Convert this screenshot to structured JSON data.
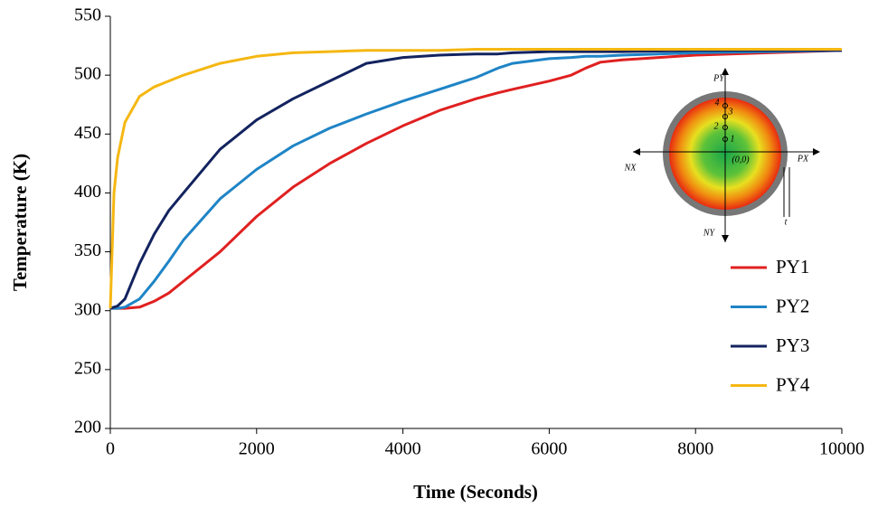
{
  "chart_data": {
    "type": "line",
    "x_label": "Time  (Seconds)",
    "y_label": "Temperature  (K)",
    "x": [
      0,
      50,
      100,
      200,
      400,
      600,
      800,
      1000,
      1500,
      2000,
      2500,
      3000,
      3500,
      4000,
      4500,
      5000,
      5300,
      5500,
      6000,
      6300,
      6500,
      6700,
      7000,
      8000,
      9000,
      10000
    ],
    "series": [
      {
        "name": "PY1",
        "color": "#e02020",
        "values": [
          302,
          302,
          302,
          302,
          303,
          308,
          315,
          325,
          350,
          380,
          405,
          425,
          442,
          457,
          470,
          480,
          485,
          488,
          495,
          500,
          506,
          511,
          513,
          517,
          519,
          521
        ]
      },
      {
        "name": "PY2",
        "color": "#1f84c6",
        "values": [
          302,
          302,
          302,
          303,
          310,
          325,
          342,
          360,
          395,
          420,
          440,
          455,
          467,
          478,
          488,
          498,
          506,
          510,
          514,
          515,
          516,
          516,
          517,
          519,
          520,
          521
        ]
      },
      {
        "name": "PY3",
        "color": "#13235f",
        "values": [
          302,
          303,
          304,
          310,
          340,
          365,
          385,
          400,
          437,
          462,
          480,
          495,
          510,
          515,
          517,
          518,
          518,
          519,
          520,
          520,
          520,
          520,
          520,
          521,
          521,
          521
        ]
      },
      {
        "name": "PY4",
        "color": "#f5b712",
        "values": [
          302,
          400,
          430,
          460,
          482,
          490,
          495,
          500,
          510,
          516,
          519,
          520,
          521,
          521,
          521,
          522,
          522,
          522,
          522,
          522,
          522,
          522,
          522,
          522,
          522,
          522
        ]
      }
    ],
    "xlim": [
      0,
      10000
    ],
    "ylim": [
      200,
      550
    ],
    "xticks": [
      0,
      2000,
      4000,
      6000,
      8000,
      10000
    ],
    "yticks": [
      200,
      250,
      300,
      350,
      400,
      450,
      500,
      550
    ],
    "legend": "right",
    "inset_labels": [
      "PY",
      "NX",
      "PX",
      "NY",
      "4",
      "3",
      "2",
      "1",
      "(0,0)",
      "t"
    ]
  }
}
